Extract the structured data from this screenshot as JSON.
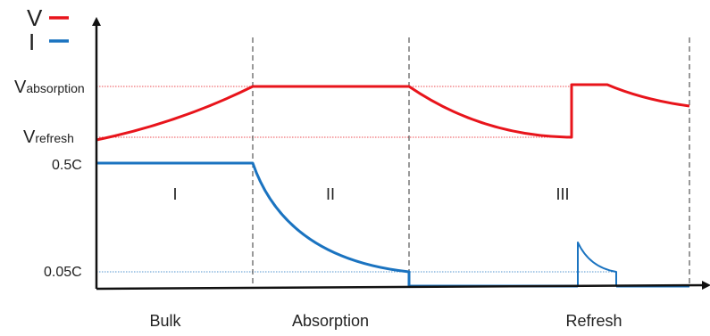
{
  "legend": {
    "voltage_label": "V",
    "current_label": "I"
  },
  "y_labels": {
    "v_absorption_main": "V",
    "v_absorption_sub": "absorption",
    "v_refresh_main": "V",
    "v_refresh_sub": "refresh",
    "current_high": "0.5C",
    "current_low": "0.05C"
  },
  "phase_numbers": [
    "I",
    "II",
    "III"
  ],
  "phase_names": [
    "Bulk",
    "Absorption",
    "Refresh"
  ],
  "colors": {
    "voltage": "#e8141b",
    "current": "#1a73c0",
    "axis": "#111111",
    "phase_divider": "#333333"
  }
}
